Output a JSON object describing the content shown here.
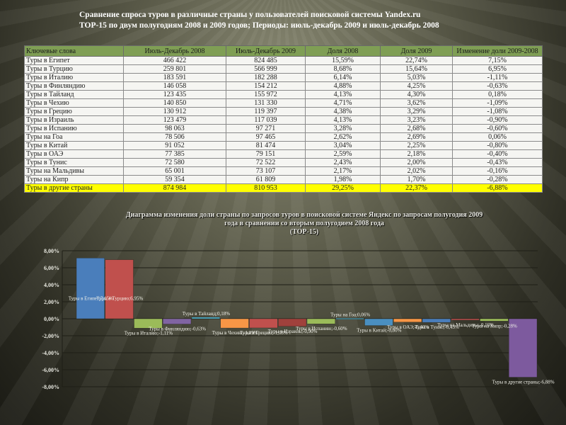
{
  "title_lines": [
    "Сравнение спроса туров в различные страны  у пользователей поисковой системы Yandex.ru",
    "ТОР-15 по двум полугодиям 2008 и 2009 годов; Периоды: июль-декабрь 2009 и июль-декабрь 2008"
  ],
  "table": {
    "headers": [
      "Ключевые слова",
      "Июль-Декабрь 2008",
      "Июль-Декабрь 2009",
      "Доля  2008",
      "Доля 2009",
      "Изменение доли 2009-2008"
    ],
    "rows": [
      [
        "Туры в Египет",
        "466 422",
        "824 485",
        "15,59%",
        "22,74%",
        "7,15%"
      ],
      [
        "Туры в Турцию",
        "259 801",
        "566 999",
        "8,68%",
        "15,64%",
        "6,95%"
      ],
      [
        "Туры в Италию",
        "183 591",
        "182 288",
        "6,14%",
        "5,03%",
        "-1,11%"
      ],
      [
        "Туры в Финляндию",
        "146 058",
        "154 212",
        "4,88%",
        "4,25%",
        "-0,63%"
      ],
      [
        "Туры в Тайланд",
        "123 435",
        "155 972",
        "4,13%",
        "4,30%",
        "0,18%"
      ],
      [
        "Туры в Чехию",
        "140 850",
        "131 330",
        "4,71%",
        "3,62%",
        "-1,09%"
      ],
      [
        "Туры в Грецию",
        "130 912",
        "119 397",
        "4,38%",
        "3,29%",
        "-1,08%"
      ],
      [
        "Туры в Израиль",
        "123 479",
        "117 039",
        "4,13%",
        "3,23%",
        "-0,90%"
      ],
      [
        "Туры в Испанию",
        "98 063",
        "97 271",
        "3,28%",
        "2,68%",
        "-0,60%"
      ],
      [
        "Туры на Гоа",
        "78 506",
        "97 465",
        "2,62%",
        "2,69%",
        "0,06%"
      ],
      [
        "Туры в Китай",
        "91 052",
        "81 474",
        "3,04%",
        "2,25%",
        "-0,80%"
      ],
      [
        "Туры в ОАЭ",
        "77 385",
        "79 151",
        "2,59%",
        "2,18%",
        "-0,40%"
      ],
      [
        "Туры в Тунис",
        "72 580",
        "72 522",
        "2,43%",
        "2,00%",
        "-0,43%"
      ],
      [
        "Туры на Мальдивы",
        "65 001",
        "73 107",
        "2,17%",
        "2,02%",
        "-0,16%"
      ],
      [
        "Туры на Кипр",
        "59 354",
        "61 809",
        "1,98%",
        "1,70%",
        "-0,28%"
      ],
      [
        "Туры в другие страны",
        "874 984",
        "810 953",
        "29,25%",
        "22,37%",
        "-6,88%"
      ]
    ],
    "highlight_color": "#ffff00",
    "header_color": "#7f9e54"
  },
  "chart_title_lines": [
    "Диаграмма изменения доли страны по запросов туров в поисковой системе Яндекс по запросам полугодия 2009",
    "года в сравнении со вторым полугодием 2008 года",
    "(ТОР-15)"
  ],
  "chart_data": {
    "type": "bar",
    "title": "Диаграмма изменения доли страны по запросов туров в поисковой системе Яндекс по запросам полугодия 2009 года в сравнении со вторым полугодием 2008 года (ТОР-15)",
    "categories": [
      "Туры в Египет",
      "Туры в Турцию",
      "Туры в Италию",
      "Туры в Финляндию",
      "Туры в Тайланд",
      "Туры в Чехию",
      "Туры в Грецию",
      "Туры в Израиль",
      "Туры в Испанию",
      "Туры на Гоа",
      "Туры в Китай",
      "Туры в ОАЭ",
      "Туры в Тунис",
      "Туры на Мальдивы",
      "Туры на Кипр",
      "Туры в другие страны"
    ],
    "values": [
      7.15,
      6.95,
      -1.11,
      -0.63,
      0.18,
      -1.09,
      -1.08,
      -0.9,
      -0.6,
      0.06,
      -0.8,
      -0.4,
      -0.43,
      -0.16,
      -0.28,
      -6.88
    ],
    "colors": [
      "#4a7ebb",
      "#c0504d",
      "#9bbb59",
      "#8064a2",
      "#4bacc6",
      "#f79646",
      "#c0504d",
      "#a0413c",
      "#9bbb59",
      "#4bacc6",
      "#4a8fc0",
      "#f79646",
      "#4a7ebb",
      "#c0504d",
      "#9bbb59",
      "#7d5a9e"
    ],
    "yticks": [
      "8,00%",
      "6,00%",
      "4,00%",
      "2,00%",
      "0,00%",
      "-2,00%",
      "-4,00%",
      "-6,00%",
      "-8,00%"
    ],
    "ylim": [
      -8,
      8
    ],
    "grid": true,
    "xlabel": "",
    "ylabel": ""
  }
}
